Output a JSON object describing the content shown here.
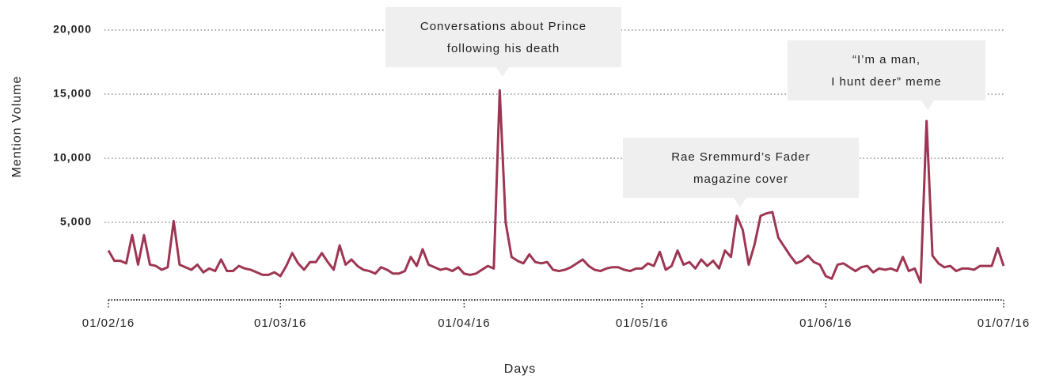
{
  "chart_data": {
    "type": "line",
    "x_label": "Days",
    "y_label": "Mention Volume",
    "color": "#9e3653",
    "ylim": [
      -1000,
      21000
    ],
    "yticks": [
      {
        "value": 5000,
        "label": "5,000"
      },
      {
        "value": 10000,
        "label": "10,000"
      },
      {
        "value": 15000,
        "label": "15,000"
      },
      {
        "value": 20000,
        "label": "20,000"
      }
    ],
    "grid": true,
    "xticks": [
      "01/02/16",
      "01/03/16",
      "01/04/16",
      "01/05/16",
      "01/06/16",
      "01/07/16"
    ],
    "x": [
      "01/02/16",
      "02/02/16",
      "03/02/16",
      "04/02/16",
      "05/02/16",
      "06/02/16",
      "07/02/16",
      "08/02/16",
      "09/02/16",
      "10/02/16",
      "11/02/16",
      "12/02/16",
      "13/02/16",
      "14/02/16",
      "15/02/16",
      "16/02/16",
      "17/02/16",
      "18/02/16",
      "19/02/16",
      "20/02/16",
      "21/02/16",
      "22/02/16",
      "23/02/16",
      "24/02/16",
      "25/02/16",
      "26/02/16",
      "27/02/16",
      "28/02/16",
      "29/02/16",
      "01/03/16",
      "02/03/16",
      "03/03/16",
      "04/03/16",
      "05/03/16",
      "06/03/16",
      "07/03/16",
      "08/03/16",
      "09/03/16",
      "10/03/16",
      "11/03/16",
      "12/03/16",
      "13/03/16",
      "14/03/16",
      "15/03/16",
      "16/03/16",
      "17/03/16",
      "18/03/16",
      "19/03/16",
      "20/03/16",
      "21/03/16",
      "22/03/16",
      "23/03/16",
      "24/03/16",
      "25/03/16",
      "26/03/16",
      "27/03/16",
      "28/03/16",
      "29/03/16",
      "30/03/16",
      "31/03/16",
      "01/04/16",
      "02/04/16",
      "03/04/16",
      "04/04/16",
      "05/04/16",
      "06/04/16",
      "07/04/16",
      "08/04/16",
      "09/04/16",
      "10/04/16",
      "11/04/16",
      "12/04/16",
      "13/04/16",
      "14/04/16",
      "15/04/16",
      "16/04/16",
      "17/04/16",
      "18/04/16",
      "19/04/16",
      "20/04/16",
      "21/04/16",
      "22/04/16",
      "23/04/16",
      "24/04/16",
      "25/04/16",
      "26/04/16",
      "27/04/16",
      "28/04/16",
      "29/04/16",
      "30/04/16",
      "01/05/16",
      "02/05/16",
      "03/05/16",
      "04/05/16",
      "05/05/16",
      "06/05/16",
      "07/05/16",
      "08/05/16",
      "09/05/16",
      "10/05/16",
      "11/05/16",
      "12/05/16",
      "13/05/16",
      "14/05/16",
      "15/05/16",
      "16/05/16",
      "17/05/16",
      "18/05/16",
      "19/05/16",
      "20/05/16",
      "21/05/16",
      "22/05/16",
      "23/05/16",
      "24/05/16",
      "25/05/16",
      "26/05/16",
      "27/05/16",
      "28/05/16",
      "29/05/16",
      "30/05/16",
      "31/05/16",
      "01/06/16",
      "02/06/16",
      "03/06/16",
      "04/06/16",
      "05/06/16",
      "06/06/16",
      "07/06/16",
      "08/06/16",
      "09/06/16",
      "10/06/16",
      "11/06/16",
      "12/06/16",
      "13/06/16",
      "14/06/16",
      "15/06/16",
      "16/06/16",
      "17/06/16",
      "18/06/16",
      "19/06/16",
      "20/06/16",
      "21/06/16",
      "22/06/16",
      "23/06/16",
      "24/06/16",
      "25/06/16",
      "26/06/16",
      "27/06/16",
      "28/06/16",
      "29/06/16",
      "30/06/16",
      "01/07/16"
    ],
    "values": [
      2800,
      2000,
      2000,
      1800,
      4000,
      1700,
      4000,
      1700,
      1600,
      1300,
      1500,
      5100,
      1700,
      1500,
      1300,
      1700,
      1100,
      1400,
      1200,
      2100,
      1200,
      1200,
      1600,
      1400,
      1300,
      1100,
      900,
      900,
      1100,
      800,
      1600,
      2600,
      1800,
      1300,
      1900,
      1900,
      2600,
      1900,
      1300,
      3200,
      1700,
      2100,
      1600,
      1300,
      1200,
      1000,
      1500,
      1300,
      1000,
      1000,
      1200,
      2300,
      1600,
      2900,
      1700,
      1500,
      1300,
      1400,
      1200,
      1500,
      1000,
      900,
      1000,
      1300,
      1600,
      1400,
      15300,
      5000,
      2300,
      2000,
      1800,
      2500,
      1900,
      1800,
      1900,
      1300,
      1200,
      1300,
      1500,
      1800,
      2100,
      1600,
      1300,
      1200,
      1400,
      1500,
      1500,
      1300,
      1200,
      1400,
      1400,
      1800,
      1600,
      2700,
      1300,
      1600,
      2800,
      1700,
      1900,
      1400,
      2100,
      1600,
      2000,
      1400,
      2800,
      2300,
      5500,
      4400,
      1700,
      3300,
      5500,
      5700,
      5800,
      3800,
      3100,
      2400,
      1800,
      2000,
      2400,
      1900,
      1700,
      800,
      600,
      1700,
      1800,
      1500,
      1200,
      1500,
      1600,
      1100,
      1400,
      1300,
      1400,
      1200,
      2300,
      1200,
      1400,
      300,
      12900,
      2400,
      1800,
      1500,
      1600,
      1200,
      1400,
      1400,
      1300,
      1600,
      1600,
      1600,
      3000,
      1600
    ],
    "annotations": [
      [
        "Conversations about Prince",
        "following his death"
      ],
      [
        "Rae Sremmurd’s Fader",
        "magazine cover"
      ],
      [
        "“I’m a man,",
        "I hunt deer” meme"
      ]
    ]
  }
}
